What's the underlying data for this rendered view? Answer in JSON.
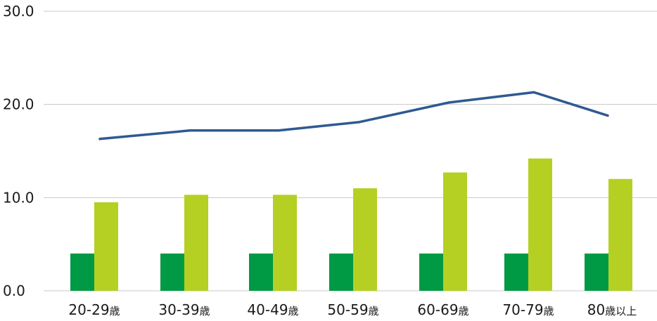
{
  "chart_data": {
    "type": "bar",
    "categories": [
      "20-29歳",
      "30-39歳",
      "40-49歳",
      "50-59歳",
      "60-69歳",
      "70-79歳",
      "80歳以上"
    ],
    "category_parts": [
      {
        "num": "20-29",
        "kanji": "歳"
      },
      {
        "num": "30-39",
        "kanji": "歳"
      },
      {
        "num": "40-49",
        "kanji": "歳"
      },
      {
        "num": "50-59",
        "kanji": "歳"
      },
      {
        "num": "60-69",
        "kanji": "歳"
      },
      {
        "num": "70-79",
        "kanji": "歳"
      },
      {
        "num": "80",
        "kanji": "歳以上"
      }
    ],
    "series": [
      {
        "type": "bar",
        "color": "#009944",
        "values": [
          4.0,
          4.0,
          4.0,
          4.0,
          4.0,
          4.0,
          4.0
        ]
      },
      {
        "type": "bar",
        "color": "#b5d023",
        "values": [
          9.5,
          10.3,
          10.3,
          11.0,
          12.7,
          14.2,
          12.0
        ]
      },
      {
        "type": "line",
        "color": "#2f5a91",
        "values": [
          16.3,
          17.2,
          17.2,
          18.1,
          20.2,
          21.3,
          18.8
        ]
      }
    ],
    "yticks": [
      "0.0",
      "10.0",
      "20.0",
      "30.0"
    ],
    "ylim": [
      0,
      30
    ],
    "grid": true,
    "title": "",
    "xlabel": "",
    "ylabel": ""
  }
}
